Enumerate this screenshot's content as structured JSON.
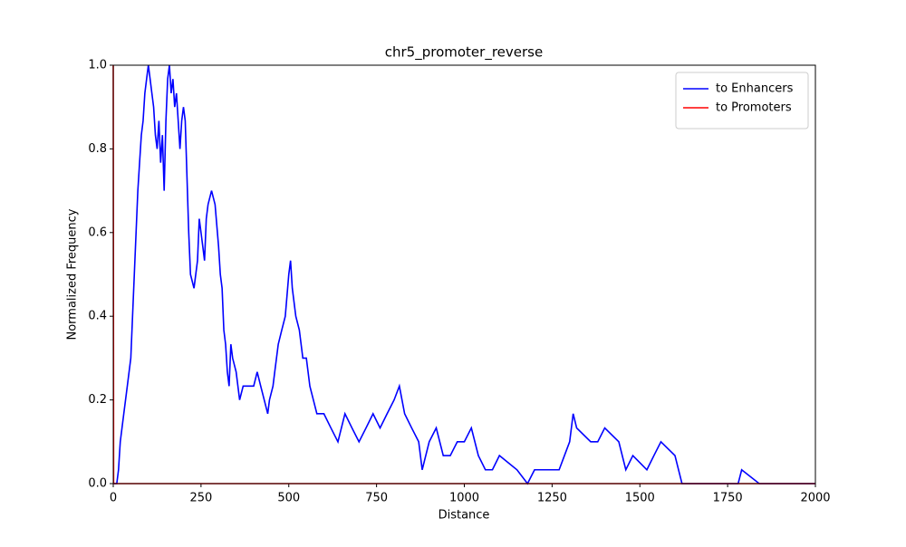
{
  "chart_data": {
    "type": "line",
    "title": "chr5_promoter_reverse",
    "x_label": "Distance",
    "y_label": "Normalized Frequency",
    "xlim": [
      0,
      2000
    ],
    "ylim": [
      0,
      1
    ],
    "xticks": [
      0,
      250,
      500,
      750,
      1000,
      1250,
      1500,
      1750,
      2000
    ],
    "yticks": [
      {
        "value": 0,
        "label": "0.0"
      },
      {
        "value": 0.2,
        "label": "0.2"
      },
      {
        "value": 0.4,
        "label": "0.4"
      },
      {
        "value": 0.6,
        "label": "0.6"
      },
      {
        "value": 0.8,
        "label": "0.8"
      },
      {
        "value": 1,
        "label": "1.0"
      }
    ],
    "legend": "upper right",
    "series": [
      {
        "name": "to Enhancers",
        "color": "#0000ff",
        "x": [
          0,
          10,
          15,
          20,
          30,
          40,
          50,
          55,
          60,
          65,
          70,
          75,
          80,
          85,
          90,
          95,
          100,
          105,
          110,
          115,
          120,
          125,
          130,
          135,
          140,
          145,
          150,
          155,
          160,
          165,
          170,
          175,
          180,
          185,
          190,
          195,
          200,
          205,
          210,
          215,
          220,
          230,
          240,
          245,
          250,
          255,
          260,
          265,
          270,
          280,
          290,
          300,
          305,
          310,
          315,
          320,
          325,
          330,
          335,
          340,
          350,
          360,
          370,
          380,
          400,
          410,
          420,
          430,
          440,
          445,
          455,
          460,
          470,
          480,
          490,
          500,
          505,
          510,
          520,
          530,
          540,
          550,
          560,
          570,
          580,
          600,
          620,
          640,
          660,
          680,
          700,
          720,
          740,
          760,
          780,
          800,
          815,
          830,
          850,
          870,
          880,
          900,
          920,
          940,
          960,
          980,
          1000,
          1020,
          1040,
          1060,
          1080,
          1100,
          1150,
          1180,
          1200,
          1250,
          1270,
          1300,
          1310,
          1320,
          1360,
          1380,
          1400,
          1440,
          1460,
          1480,
          1520,
          1540,
          1560,
          1600,
          1620,
          1780,
          1790,
          1840,
          2000
        ],
        "values": [
          0,
          0,
          0.033,
          0.1,
          0.167,
          0.233,
          0.3,
          0.4,
          0.5,
          0.6,
          0.7,
          0.767,
          0.833,
          0.867,
          0.933,
          0.967,
          1.0,
          0.967,
          0.933,
          0.9,
          0.833,
          0.8,
          0.867,
          0.767,
          0.833,
          0.7,
          0.867,
          0.967,
          1.0,
          0.933,
          0.967,
          0.9,
          0.933,
          0.867,
          0.8,
          0.867,
          0.9,
          0.867,
          0.733,
          0.6,
          0.5,
          0.467,
          0.533,
          0.633,
          0.6,
          0.567,
          0.533,
          0.633,
          0.667,
          0.7,
          0.667,
          0.567,
          0.5,
          0.467,
          0.367,
          0.333,
          0.267,
          0.233,
          0.333,
          0.3,
          0.267,
          0.2,
          0.233,
          0.233,
          0.233,
          0.267,
          0.233,
          0.2,
          0.167,
          0.2,
          0.233,
          0.267,
          0.333,
          0.367,
          0.4,
          0.5,
          0.533,
          0.467,
          0.4,
          0.367,
          0.3,
          0.3,
          0.233,
          0.2,
          0.167,
          0.167,
          0.133,
          0.1,
          0.167,
          0.133,
          0.1,
          0.133,
          0.167,
          0.133,
          0.167,
          0.2,
          0.233,
          0.167,
          0.133,
          0.1,
          0.033,
          0.1,
          0.133,
          0.067,
          0.067,
          0.1,
          0.1,
          0.133,
          0.067,
          0.033,
          0.033,
          0.067,
          0.033,
          0,
          0.033,
          0.033,
          0.033,
          0.1,
          0.167,
          0.133,
          0.1,
          0.1,
          0.133,
          0.1,
          0.033,
          0.067,
          0.033,
          0.067,
          0.1,
          0.067,
          0,
          0,
          0.033,
          0,
          0
        ]
      },
      {
        "name": "to Promoters",
        "color": "#ff0000",
        "x": [
          0,
          1,
          2000
        ],
        "values": [
          1,
          0,
          0
        ]
      }
    ]
  }
}
